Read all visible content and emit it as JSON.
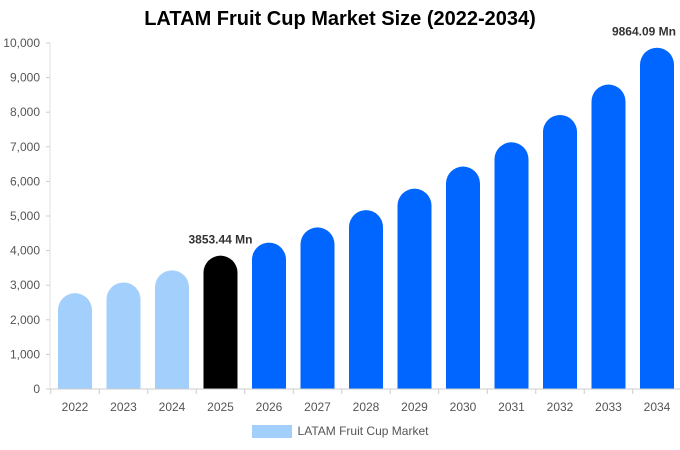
{
  "chart_data": {
    "type": "bar",
    "title": "LATAM Fruit Cup Market Size (2022-2034)",
    "xlabel": "",
    "ylabel": "",
    "categories": [
      "2022",
      "2023",
      "2024",
      "2025",
      "2026",
      "2027",
      "2028",
      "2029",
      "2030",
      "2031",
      "2032",
      "2033",
      "2034"
    ],
    "series": [
      {
        "name": "LATAM Fruit Cup Market",
        "values": [
          2770,
          3080,
          3430,
          3853.44,
          4230,
          4670,
          5170,
          5790,
          6430,
          7130,
          7920,
          8800,
          9864.09
        ]
      }
    ],
    "ylim": [
      0,
      10000
    ],
    "yticks": [
      "0",
      "1,000",
      "2,000",
      "3,000",
      "4,000",
      "5,000",
      "6,000",
      "7,000",
      "8,000",
      "9,000",
      "10,000"
    ],
    "data_labels": [
      {
        "category": "2025",
        "text": "3853.44 Mn"
      },
      {
        "category": "2034",
        "text": "9864.09 Mn"
      }
    ],
    "colors": {
      "historical": "#a3cffd",
      "base_year": "#000000",
      "forecast": "#0066ff"
    },
    "grid": false,
    "legend": "bottom-center"
  }
}
